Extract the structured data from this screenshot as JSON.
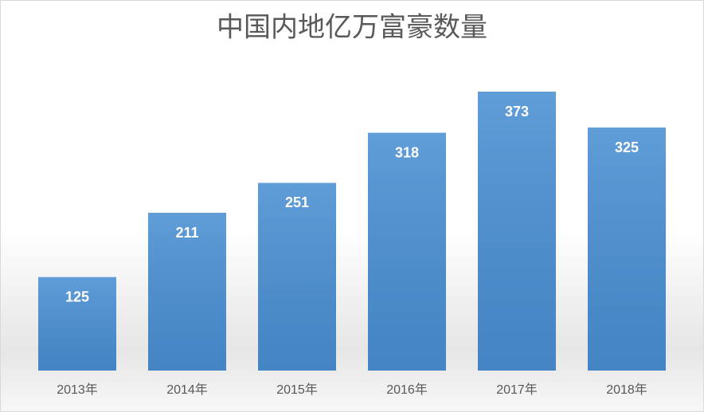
{
  "chart_data": {
    "type": "bar",
    "title": "中国内地亿万富豪数量",
    "categories": [
      "2013年",
      "2014年",
      "2015年",
      "2016年",
      "2017年",
      "2018年"
    ],
    "values": [
      125,
      211,
      251,
      318,
      373,
      325
    ],
    "color": "#4a90d4"
  }
}
